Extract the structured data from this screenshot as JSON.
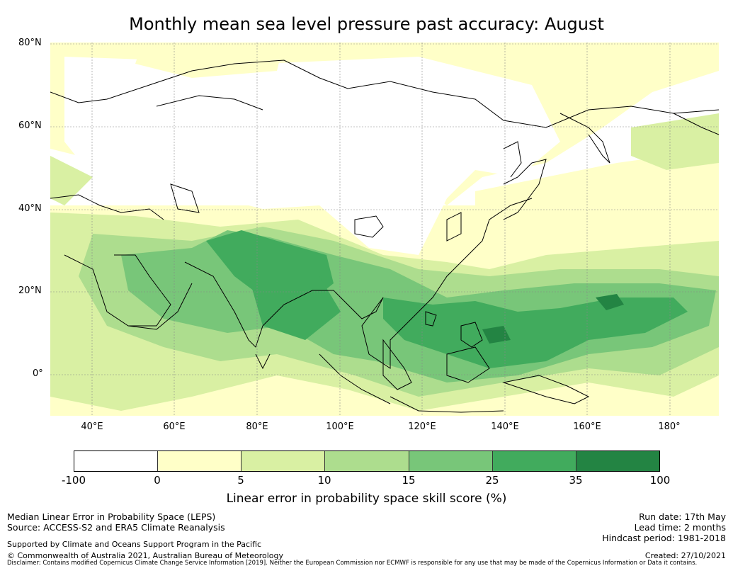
{
  "title": "Monthly mean sea level pressure past accuracy: August",
  "axes": {
    "lat_labels": [
      "80°N",
      "60°N",
      "40°N",
      "20°N",
      "0°"
    ],
    "lon_labels": [
      "40°E",
      "60°E",
      "80°E",
      "100°E",
      "120°E",
      "140°E",
      "160°E",
      "180°"
    ]
  },
  "colorbar": {
    "title": "Linear error in probability space skill score (%)",
    "ticks": [
      "-100",
      "0",
      "5",
      "10",
      "15",
      "25",
      "35",
      "100"
    ],
    "colors": [
      "#ffffff",
      "#ffffc8",
      "#d9f0a3",
      "#addd8e",
      "#78c679",
      "#41ab5d",
      "#238443"
    ]
  },
  "footer": {
    "left1": "Median Linear Error in Probability Space (LEPS)",
    "left2": "Source: ACCESS-S2 and ERA5 Climate Reanalysis",
    "left3": "Supported by Climate and Oceans Support Program in the Pacific",
    "left4": "© Commonwealth of Australia 2021, Australian Bureau of Meteorology",
    "disclaimer": "Disclaimer: Contains modified Copernicus Climate Change Service Information [2019]. Neither the European Commission nor ECMWF is responsible for any use that may be made of the Copernicus Information or Data it contains.",
    "right1": "Run date: 17th May",
    "right2": "Lead time: 2 months",
    "right3": "Hindcast period: 1981-2018",
    "right4": "Created: 27/10/2021"
  }
}
